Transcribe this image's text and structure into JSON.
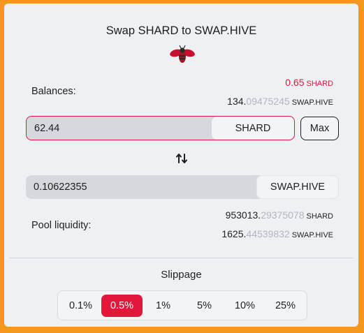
{
  "title": "Swap SHARD to SWAP.HIVE",
  "logo": {
    "icon": "bee-logo-icon"
  },
  "balances": {
    "label": "Balances:",
    "shard": {
      "value": "0.65",
      "unit": "SHARD",
      "color": "#e3173a"
    },
    "hive": {
      "value_main": "134.",
      "value_dim": "09475245",
      "unit": "SWAP.HIVE"
    }
  },
  "input": {
    "value": "62.44",
    "token": "SHARD",
    "max_label": "Max"
  },
  "swap_direction": {
    "icon": "swap-arrows-icon"
  },
  "output": {
    "value": "0.10622355",
    "token": "SWAP.HIVE"
  },
  "pool": {
    "label": "Pool liquidity:",
    "shard": {
      "value_main": "953013.",
      "value_dim": "29375078",
      "unit": "SHARD"
    },
    "hive": {
      "value_main": "1625.",
      "value_dim": "44539832",
      "unit": "SWAP.HIVE"
    }
  },
  "slippage": {
    "title": "Slippage",
    "options": [
      "0.1%",
      "0.5%",
      "1%",
      "5%",
      "10%",
      "25%"
    ],
    "selected": "0.5%"
  },
  "colors": {
    "accent": "#e3173a",
    "frame": "#f5961e",
    "panel": "#eff0f3"
  }
}
